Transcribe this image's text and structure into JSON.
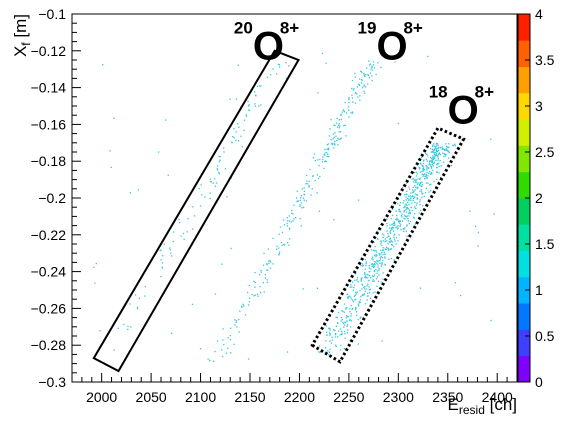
{
  "chart_data": {
    "type": "heatmap",
    "title": "",
    "xlabel": {
      "main": "E",
      "sub": "resid",
      "unit": " [ch]"
    },
    "ylabel": {
      "main": "X",
      "sub": "f",
      "unit": " [m]"
    },
    "xlim": [
      1970,
      2420
    ],
    "ylim": [
      -0.3,
      -0.1
    ],
    "x_ticks": [
      {
        "value": 2000,
        "label": "2000"
      },
      {
        "value": 2050,
        "label": "2050"
      },
      {
        "value": 2100,
        "label": "2100"
      },
      {
        "value": 2150,
        "label": "2150"
      },
      {
        "value": 2200,
        "label": "2200"
      },
      {
        "value": 2250,
        "label": "2250"
      },
      {
        "value": 2300,
        "label": "2300"
      },
      {
        "value": 2350,
        "label": "2350"
      },
      {
        "value": 2400,
        "label": "2400"
      }
    ],
    "y_ticks": [
      {
        "value": -0.1,
        "label": "−0.1"
      },
      {
        "value": -0.12,
        "label": "−0.12"
      },
      {
        "value": -0.14,
        "label": "−0.14"
      },
      {
        "value": -0.16,
        "label": "−0.16"
      },
      {
        "value": -0.18,
        "label": "−0.18"
      },
      {
        "value": -0.2,
        "label": "−0.2"
      },
      {
        "value": -0.22,
        "label": "−0.22"
      },
      {
        "value": -0.24,
        "label": "−0.24"
      },
      {
        "value": -0.26,
        "label": "−0.26"
      },
      {
        "value": -0.28,
        "label": "−0.28"
      },
      {
        "value": -0.3,
        "label": "−0.3"
      }
    ],
    "z_range": [
      0,
      4
    ],
    "z_ticks": [
      {
        "value": 0,
        "label": "0"
      },
      {
        "value": 0.5,
        "label": "0.5"
      },
      {
        "value": 1,
        "label": "1"
      },
      {
        "value": 1.5,
        "label": "1.5"
      },
      {
        "value": 2,
        "label": "2"
      },
      {
        "value": 2.5,
        "label": "2.5"
      },
      {
        "value": 3,
        "label": "3"
      },
      {
        "value": 3.5,
        "label": "3.5"
      },
      {
        "value": 4,
        "label": "4"
      }
    ],
    "palette": [
      "#7f00ff",
      "#3f3fff",
      "#0078ff",
      "#00b4ff",
      "#00e0e0",
      "#00e0a0",
      "#00d060",
      "#30dc00",
      "#80e800",
      "#d0f000",
      "#ffd800",
      "#ffa000",
      "#ff6000",
      "#ff2000"
    ],
    "point_color": "#33c8e0",
    "loci": [
      {
        "name": "20O",
        "x0": 2005,
        "y0": -0.285,
        "x1": 2180,
        "y1": -0.125,
        "width_ch": 10,
        "density": 0.35
      },
      {
        "name": "19O",
        "x0": 2115,
        "y0": -0.29,
        "x1": 2275,
        "y1": -0.125,
        "width_ch": 10,
        "density": 1.0
      },
      {
        "name": "18O",
        "x0": 2225,
        "y0": -0.285,
        "x1": 2345,
        "y1": -0.17,
        "width_ch": 14,
        "density": 2.6
      }
    ],
    "gates": [
      {
        "label": "20O gate",
        "style": "solid",
        "corners": [
          [
            1992,
            -0.287
          ],
          [
            2017,
            -0.294
          ],
          [
            2199,
            -0.125
          ],
          [
            2175,
            -0.12
          ]
        ]
      },
      {
        "label": "18O gate",
        "style": "dotted",
        "corners": [
          [
            2213,
            -0.28
          ],
          [
            2241,
            -0.289
          ],
          [
            2366,
            -0.168
          ],
          [
            2340,
            -0.162
          ]
        ]
      }
    ],
    "annotations": [
      {
        "mass": "20",
        "charge": "8+",
        "symbol": "O",
        "x": 2165,
        "y": -0.117
      },
      {
        "mass": "19",
        "charge": "8+",
        "symbol": "O",
        "x": 2290,
        "y": -0.117
      },
      {
        "mass": "18",
        "charge": "8+",
        "symbol": "O",
        "x": 2362,
        "y": -0.152
      }
    ]
  }
}
